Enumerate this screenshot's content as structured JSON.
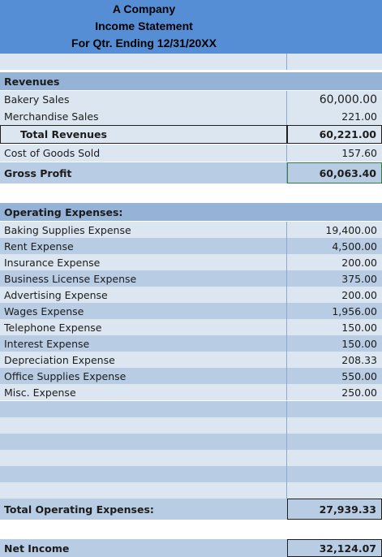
{
  "header": {
    "company": "A Company",
    "statement": "Income Statement",
    "period": "For Qtr. Ending 12/31/20XX"
  },
  "revenues": {
    "heading": "Revenues",
    "items": [
      {
        "label": "Bakery Sales",
        "value": "60,000.00"
      },
      {
        "label": "Merchandise Sales",
        "value": "221.00"
      }
    ],
    "total_label": "Total Revenues",
    "total_value": "60,221.00"
  },
  "cogs": {
    "label": "Cost of Goods Sold",
    "value": "157.60"
  },
  "gross_profit": {
    "label": "Gross Profit",
    "value": "60,063.40"
  },
  "expenses": {
    "heading": "Operating Expenses:",
    "items": [
      {
        "label": "Baking Supplies Expense",
        "value": "19,400.00"
      },
      {
        "label": "Rent Expense",
        "value": "4,500.00"
      },
      {
        "label": "Insurance Expense",
        "value": "200.00"
      },
      {
        "label": "Business License Expense",
        "value": "375.00"
      },
      {
        "label": "Advertising Expense",
        "value": "200.00"
      },
      {
        "label": "Wages Expense",
        "value": "1,956.00"
      },
      {
        "label": "Telephone Expense",
        "value": "150.00"
      },
      {
        "label": "Interest Expense",
        "value": "150.00"
      },
      {
        "label": "Depreciation Expense",
        "value": "208.33"
      },
      {
        "label": "Office Supplies Expense",
        "value": "550.00"
      },
      {
        "label": "Misc. Expense",
        "value": "250.00"
      }
    ],
    "total_label": "Total Operating Expenses:",
    "total_value": "27,939.33"
  },
  "net_income": {
    "label": "Net Income",
    "value": "32,124.07"
  }
}
